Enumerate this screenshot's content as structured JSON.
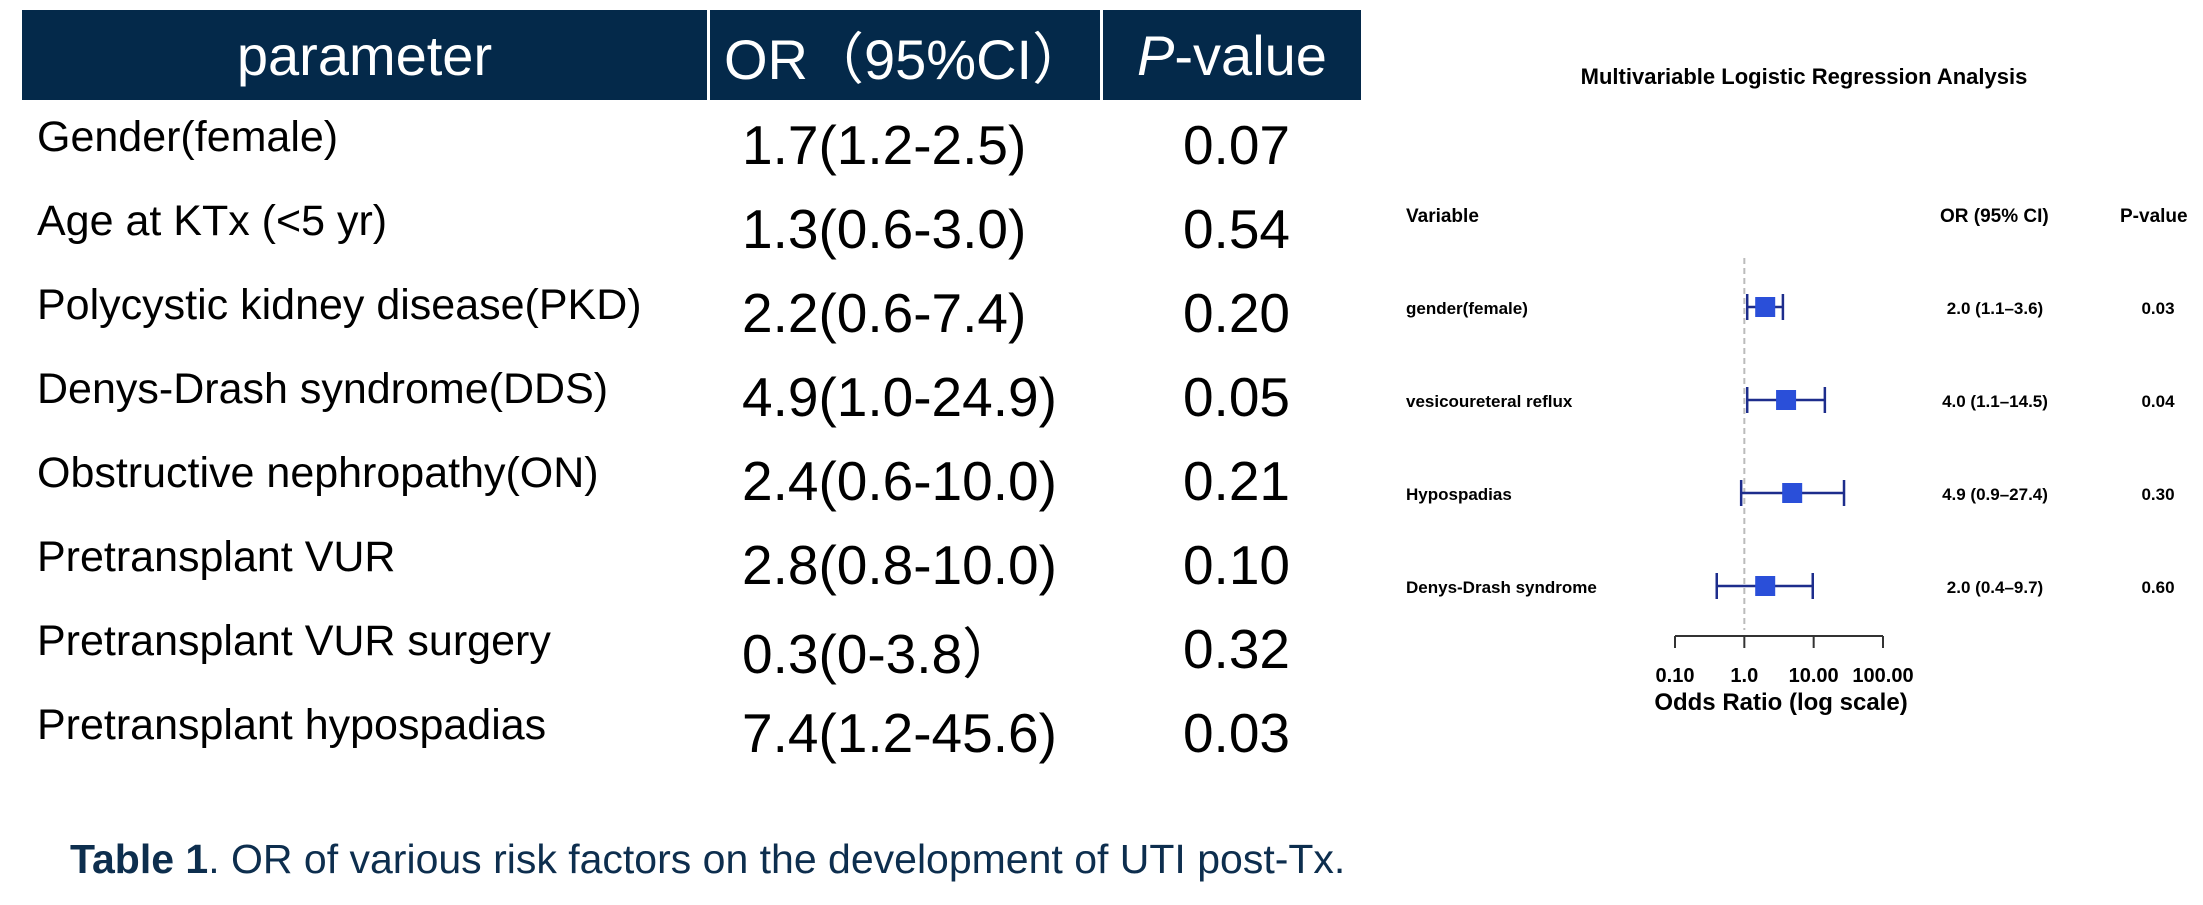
{
  "table": {
    "headers": {
      "parameter": "parameter",
      "or": "OR（95%CI）",
      "p_italic": "P",
      "p_rest": "-value"
    },
    "rows": [
      {
        "parameter": "Gender(female)",
        "or": "1.7(1.2-2.5)",
        "p": "0.07"
      },
      {
        "parameter": "Age at KTx (<5 yr)",
        "or": "1.3(0.6-3.0)",
        "p": "0.54"
      },
      {
        "parameter": "Polycystic kidney disease(PKD)",
        "or": "2.2(0.6-7.4)",
        "p": "0.20"
      },
      {
        "parameter": "Denys-Drash syndrome(DDS)",
        "or": "4.9(1.0-24.9)",
        "p": "0.05"
      },
      {
        "parameter": "Obstructive nephropathy(ON)",
        "or": "2.4(0.6-10.0)",
        "p": "0.21"
      },
      {
        "parameter": "Pretransplant VUR",
        "or": "2.8(0.8-10.0)",
        "p": "0.10"
      },
      {
        "parameter": "Pretransplant VUR surgery",
        "or": "0.3(0-3.8）",
        "p": "0.32"
      },
      {
        "parameter": "Pretransplant hypospadias",
        "or": "7.4(1.2-45.6)",
        "p": "0.03"
      }
    ]
  },
  "caption": {
    "label": "Table 1",
    "text": ". OR of various risk factors on the development of UTI post-Tx."
  },
  "chart_data": {
    "type": "forest",
    "title": "Multivariable Logistic Regression Analysis",
    "column_headers": {
      "variable": "Variable",
      "or": "OR (95% CI)",
      "p": "P-value"
    },
    "xlabel": "Odds Ratio (log scale)",
    "x_scale": "log",
    "xlim": [
      0.1,
      100
    ],
    "reference_line": 1,
    "ticks": [
      {
        "value": 0.1,
        "label": "0.10"
      },
      {
        "value": 1,
        "label": "1.0"
      },
      {
        "value": 10,
        "label": "10.00"
      },
      {
        "value": 100,
        "label": "100.00"
      }
    ],
    "rows": [
      {
        "variable": "gender(female)",
        "or": 2.0,
        "lo": 1.1,
        "hi": 3.6,
        "or_text": "2.0 (1.1–3.6)",
        "p": "0.03"
      },
      {
        "variable": "vesicoureteral reflux",
        "or": 4.0,
        "lo": 1.1,
        "hi": 14.5,
        "or_text": "4.0 (1.1–14.5)",
        "p": "0.04"
      },
      {
        "variable": "Hypospadias",
        "or": 4.9,
        "lo": 0.9,
        "hi": 27.4,
        "or_text": "4.9 (0.9–27.4)",
        "p": "0.30"
      },
      {
        "variable": "Denys-Drash syndrome",
        "or": 2.0,
        "lo": 0.4,
        "hi": 9.7,
        "or_text": "2.0 (0.4–9.7)",
        "p": "0.60"
      }
    ],
    "colors": {
      "marker": "#2a4fd9",
      "whisker": "#1d2d8c",
      "ref_line": "#bbbbbb",
      "axis": "#333333"
    }
  }
}
